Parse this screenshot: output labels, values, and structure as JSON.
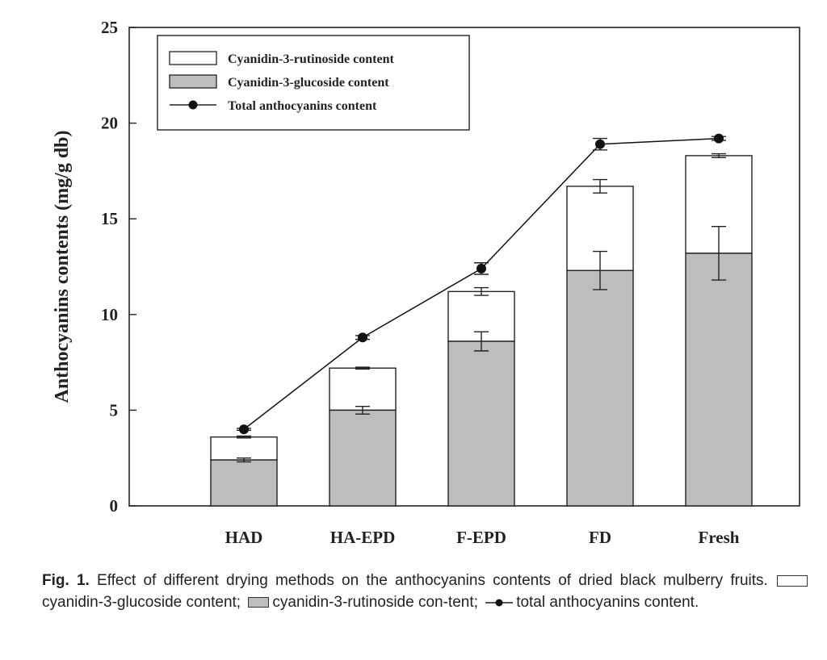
{
  "chart_data": {
    "type": "bar",
    "subtype": "stacked-with-line",
    "categories": [
      "HAD",
      "HA-EPD",
      "F-EPD",
      "FD",
      "Fresh"
    ],
    "ylabel": "Anthocyanins contents (mg/g db)",
    "xlabel": "",
    "ylim": [
      0,
      25
    ],
    "yticks": [
      0,
      5,
      10,
      15,
      20,
      25
    ],
    "grid": false,
    "legend_position": "top-left",
    "series": [
      {
        "name": "Cyanidin-3-glucoside content",
        "kind": "bar-bottom",
        "color": "#bdbdbd",
        "values": [
          2.4,
          5.0,
          8.6,
          12.3,
          13.2
        ],
        "errors": [
          0.1,
          0.2,
          0.5,
          1.0,
          1.4
        ]
      },
      {
        "name": "Cyanidin-3-rutinoside content",
        "kind": "bar-top",
        "color": "#ffffff",
        "values": [
          1.2,
          2.2,
          2.6,
          4.4,
          5.1
        ],
        "errors": [
          0.05,
          0.05,
          0.2,
          0.35,
          0.1
        ]
      },
      {
        "name": "Total anthocyanins content",
        "kind": "line",
        "color": "#111111",
        "values": [
          4.0,
          8.8,
          12.4,
          18.9,
          19.2
        ],
        "errors": [
          0.05,
          0.1,
          0.3,
          0.3,
          0.1
        ]
      }
    ]
  },
  "caption": {
    "label": "Fig. 1.",
    "text_before": "Effect of different drying methods on the anthocyanins contents of dried black mulberry fruits.",
    "item1": "cyanidin-3-glucoside content;",
    "item2": "cyanidin-3-rutinoside con-tent;",
    "item3": "total anthocyanins content."
  }
}
